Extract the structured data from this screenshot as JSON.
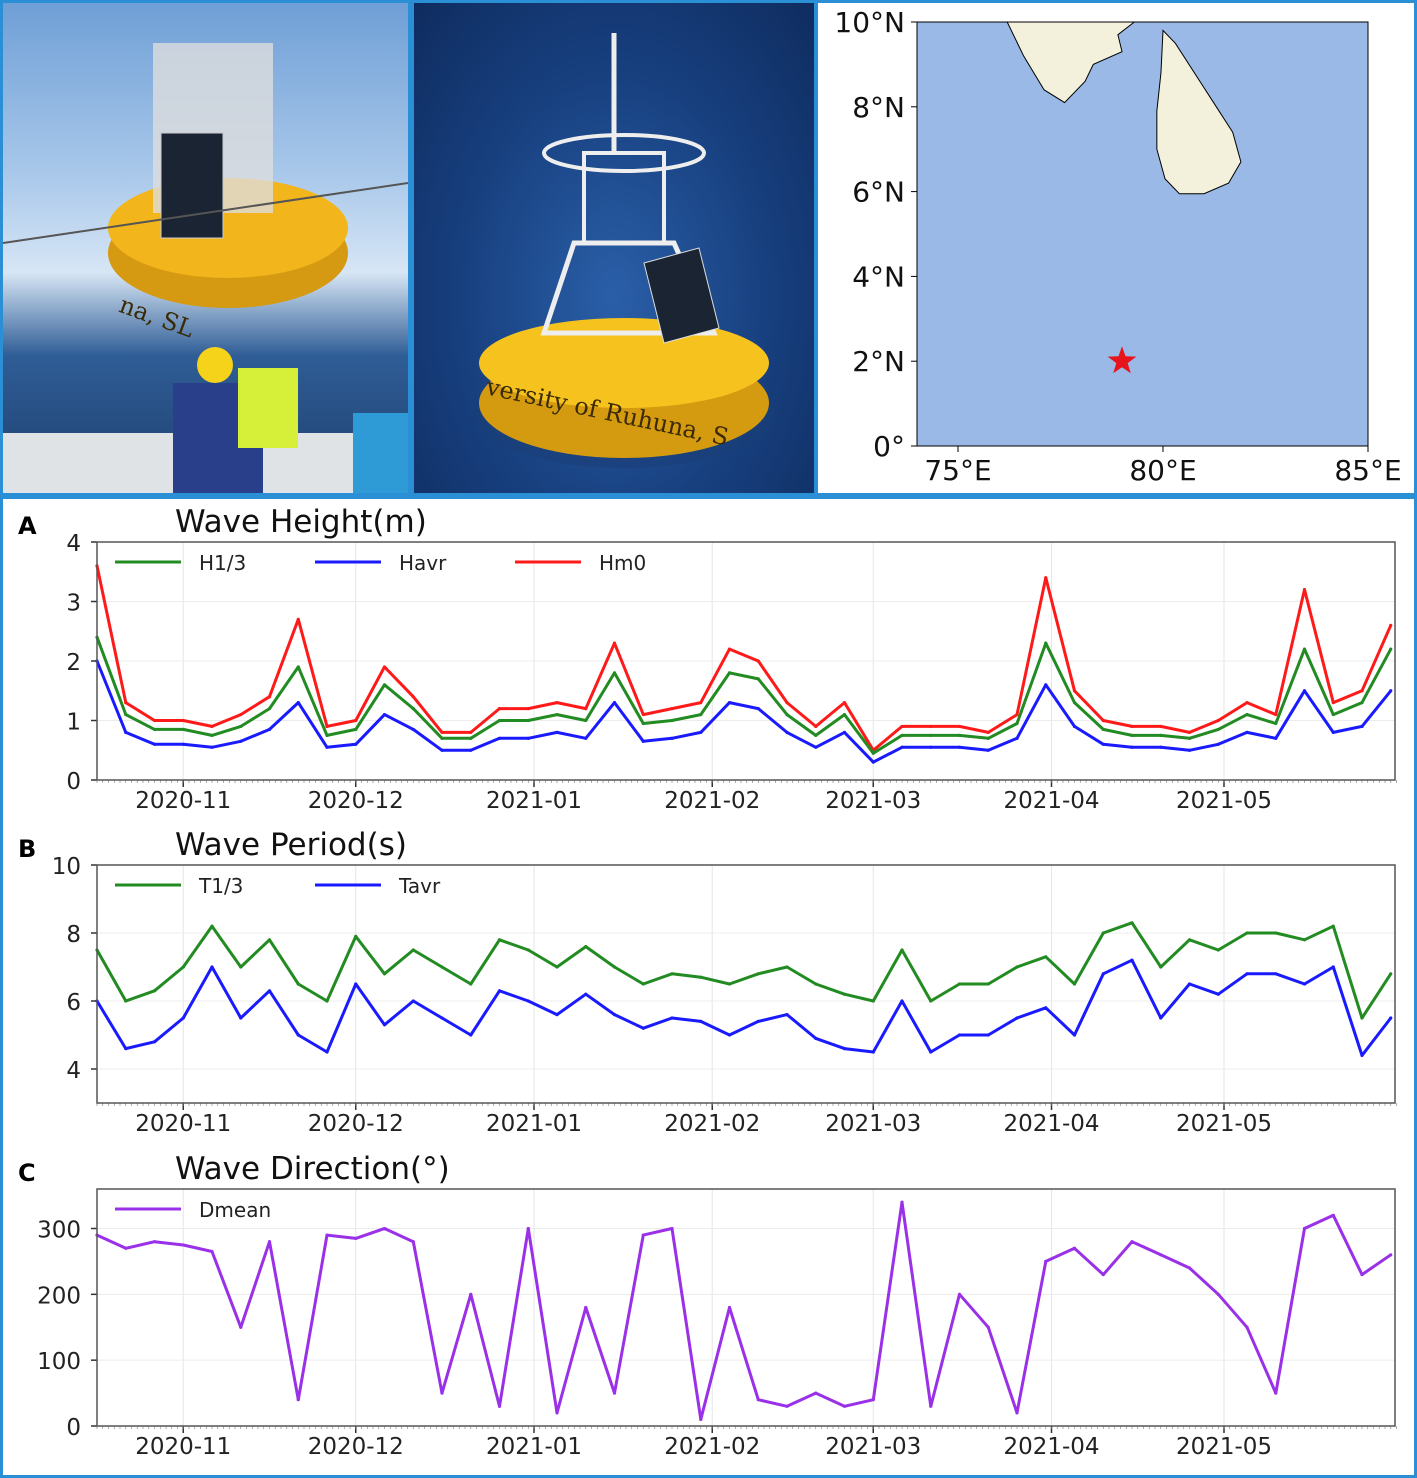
{
  "photos": {
    "left": {
      "lettering": "na, SL"
    },
    "middle": {
      "lettering": "versity of Ruhuna, S"
    }
  },
  "map": {
    "lat_ticks": [
      "10°N",
      "8°N",
      "6°N",
      "4°N",
      "2°N",
      "0°"
    ],
    "lon_ticks": [
      "75°E",
      "80°E",
      "85°E"
    ],
    "lon_range": [
      74,
      85
    ],
    "lat_range": [
      0,
      10
    ],
    "marker": {
      "lon": 79,
      "lat": 2,
      "symbol": "star",
      "color": "#e8141c"
    },
    "colors": {
      "ocean": "#9ab9e6",
      "land": "#f3f1dc"
    }
  },
  "chart_data": [
    {
      "panel_label": "A",
      "type": "line",
      "title": "Wave Height(m)",
      "ylim": [
        0,
        4
      ],
      "yticks": [
        "0",
        "1",
        "2",
        "3",
        "4"
      ],
      "x_ticks": [
        "2020-11",
        "2020-12",
        "2021-01",
        "2021-02",
        "2021-03",
        "2021-04",
        "2021-05"
      ],
      "xlim": [
        "2020-10-17",
        "2021-05-31"
      ],
      "grid": true,
      "legend": "top-left",
      "x": [
        "2020-10-17",
        "2020-10-22",
        "2020-10-27",
        "2020-11-01",
        "2020-11-06",
        "2020-11-11",
        "2020-11-16",
        "2020-11-21",
        "2020-11-26",
        "2020-12-01",
        "2020-12-06",
        "2020-12-11",
        "2020-12-16",
        "2020-12-21",
        "2020-12-26",
        "2020-12-31",
        "2021-01-05",
        "2021-01-10",
        "2021-01-15",
        "2021-01-20",
        "2021-01-25",
        "2021-01-30",
        "2021-02-04",
        "2021-02-09",
        "2021-02-14",
        "2021-02-19",
        "2021-02-24",
        "2021-03-01",
        "2021-03-06",
        "2021-03-11",
        "2021-03-16",
        "2021-03-21",
        "2021-03-26",
        "2021-03-31",
        "2021-04-05",
        "2021-04-10",
        "2021-04-15",
        "2021-04-20",
        "2021-04-25",
        "2021-04-30",
        "2021-05-05",
        "2021-05-10",
        "2021-05-15",
        "2021-05-20",
        "2021-05-25",
        "2021-05-30"
      ],
      "series": [
        {
          "name": "Hm0",
          "color": "#ff1a1a",
          "values": [
            3.6,
            1.3,
            1.0,
            1.0,
            0.9,
            1.1,
            1.4,
            2.7,
            0.9,
            1.0,
            1.9,
            1.4,
            0.8,
            0.8,
            1.2,
            1.2,
            1.3,
            1.2,
            2.3,
            1.1,
            1.2,
            1.3,
            2.2,
            2.0,
            1.3,
            0.9,
            1.3,
            0.5,
            0.9,
            0.9,
            0.9,
            0.8,
            1.1,
            3.4,
            1.5,
            1.0,
            0.9,
            0.9,
            0.8,
            1.0,
            1.3,
            1.1,
            3.2,
            1.3,
            1.5,
            2.6
          ]
        },
        {
          "name": "H1/3",
          "color": "#228b22",
          "values": [
            2.4,
            1.1,
            0.85,
            0.85,
            0.75,
            0.9,
            1.2,
            1.9,
            0.75,
            0.85,
            1.6,
            1.2,
            0.7,
            0.7,
            1.0,
            1.0,
            1.1,
            1.0,
            1.8,
            0.95,
            1.0,
            1.1,
            1.8,
            1.7,
            1.1,
            0.75,
            1.1,
            0.45,
            0.75,
            0.75,
            0.75,
            0.7,
            0.95,
            2.3,
            1.3,
            0.85,
            0.75,
            0.75,
            0.7,
            0.85,
            1.1,
            0.95,
            2.2,
            1.1,
            1.3,
            2.2
          ]
        },
        {
          "name": "Havr",
          "color": "#1a1aff",
          "values": [
            2.0,
            0.8,
            0.6,
            0.6,
            0.55,
            0.65,
            0.85,
            1.3,
            0.55,
            0.6,
            1.1,
            0.85,
            0.5,
            0.5,
            0.7,
            0.7,
            0.8,
            0.7,
            1.3,
            0.65,
            0.7,
            0.8,
            1.3,
            1.2,
            0.8,
            0.55,
            0.8,
            0.3,
            0.55,
            0.55,
            0.55,
            0.5,
            0.7,
            1.6,
            0.9,
            0.6,
            0.55,
            0.55,
            0.5,
            0.6,
            0.8,
            0.7,
            1.5,
            0.8,
            0.9,
            1.5
          ]
        }
      ],
      "legend_order": [
        "H1/3",
        "Havr",
        "Hm0"
      ]
    },
    {
      "panel_label": "B",
      "type": "line",
      "title": "Wave Period(s)",
      "ylim": [
        3,
        10
      ],
      "yticks": [
        "4",
        "6",
        "8",
        "10"
      ],
      "x_ticks": [
        "2020-11",
        "2020-12",
        "2021-01",
        "2021-02",
        "2021-03",
        "2021-04",
        "2021-05"
      ],
      "xlim": [
        "2020-10-17",
        "2021-05-31"
      ],
      "grid": true,
      "legend": "top-left",
      "series": [
        {
          "name": "T1/3",
          "color": "#228b22",
          "values": [
            7.5,
            6.0,
            6.3,
            7.0,
            8.2,
            7.0,
            7.8,
            6.5,
            6.0,
            7.9,
            6.8,
            7.5,
            7.0,
            6.5,
            7.8,
            7.5,
            7.0,
            7.6,
            7.0,
            6.5,
            6.8,
            6.7,
            6.5,
            6.8,
            7.0,
            6.5,
            6.2,
            6.0,
            7.5,
            6.0,
            6.5,
            6.5,
            7.0,
            7.3,
            6.5,
            8.0,
            8.3,
            7.0,
            7.8,
            7.5,
            8.0,
            8.0,
            7.8,
            8.2,
            5.5,
            6.8
          ]
        },
        {
          "name": "Tavr",
          "color": "#1a1aff",
          "values": [
            6.0,
            4.6,
            4.8,
            5.5,
            7.0,
            5.5,
            6.3,
            5.0,
            4.5,
            6.5,
            5.3,
            6.0,
            5.5,
            5.0,
            6.3,
            6.0,
            5.6,
            6.2,
            5.6,
            5.2,
            5.5,
            5.4,
            5.0,
            5.4,
            5.6,
            4.9,
            4.6,
            4.5,
            6.0,
            4.5,
            5.0,
            5.0,
            5.5,
            5.8,
            5.0,
            6.8,
            7.2,
            5.5,
            6.5,
            6.2,
            6.8,
            6.8,
            6.5,
            7.0,
            4.4,
            5.5
          ]
        }
      ],
      "legend_order": [
        "T1/3",
        "Tavr"
      ]
    },
    {
      "panel_label": "C",
      "type": "line",
      "title": "Wave Direction(°)",
      "ylim": [
        0,
        360
      ],
      "yticks": [
        "0",
        "100",
        "200",
        "300"
      ],
      "x_ticks": [
        "2020-11",
        "2020-12",
        "2021-01",
        "2021-02",
        "2021-03",
        "2021-04",
        "2021-05"
      ],
      "xlim": [
        "2020-10-17",
        "2021-05-31"
      ],
      "grid": true,
      "legend": "top-left",
      "series": [
        {
          "name": "Dmean",
          "color": "#9a30e8",
          "values": [
            290,
            270,
            280,
            275,
            265,
            150,
            280,
            40,
            290,
            285,
            300,
            280,
            50,
            200,
            30,
            300,
            20,
            180,
            50,
            290,
            300,
            10,
            180,
            40,
            30,
            50,
            30,
            40,
            340,
            30,
            200,
            150,
            20,
            250,
            270,
            230,
            280,
            260,
            240,
            200,
            150,
            50,
            300,
            320,
            230,
            260
          ]
        }
      ],
      "legend_order": [
        "Dmean"
      ]
    }
  ]
}
